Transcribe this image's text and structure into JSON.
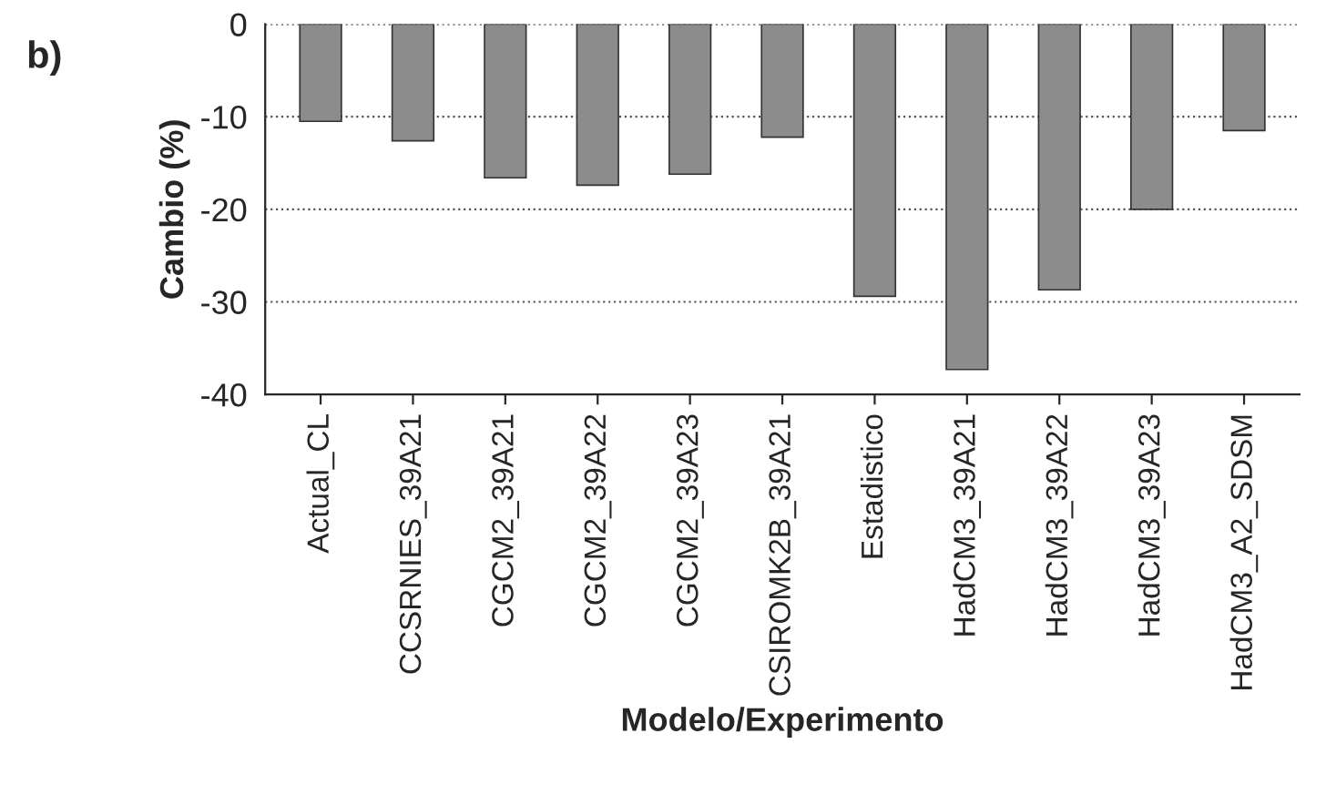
{
  "chart_data": {
    "type": "bar",
    "annotations": [
      "b)"
    ],
    "xlabel": "Modelo/Experimento",
    "ylabel": "Cambio (%)",
    "categories": [
      "Actual_CL",
      "CCSRNIES_39A21",
      "CGCM2_39A21",
      "CGCM2_39A22",
      "CGCM2_39A23",
      "CSIROMK2B_39A21",
      "Estadistico",
      "HadCM3_39A21",
      "HadCM3_39A22",
      "HadCM3_39A23",
      "HadCM3_A2_SDSM"
    ],
    "values": [
      -10.5,
      -12.6,
      -16.6,
      -17.4,
      -16.2,
      -12.2,
      -29.4,
      -37.3,
      -28.7,
      -20,
      -11.5
    ],
    "color": "#8c8c8c",
    "ylim": [
      -40,
      0
    ],
    "yticks": [
      -40,
      -30,
      -20,
      -10,
      0
    ],
    "grid": "y"
  }
}
